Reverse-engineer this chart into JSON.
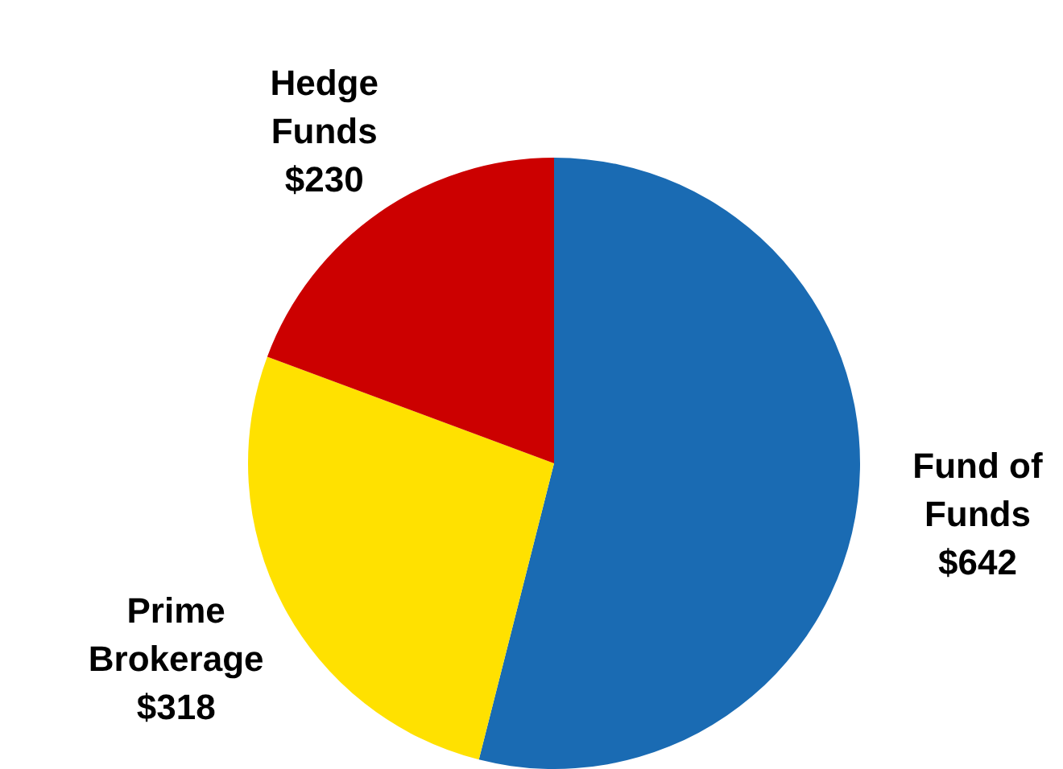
{
  "chart_data": {
    "type": "pie",
    "categories": [
      "Fund of Funds",
      "Prime Brokerage",
      "Hedge Funds"
    ],
    "values": [
      642,
      318,
      230
    ],
    "colors": [
      "#1a6bb3",
      "#ffe100",
      "#cc0000"
    ],
    "value_labels": [
      "$642",
      "$318",
      "$230"
    ],
    "legend": false
  }
}
